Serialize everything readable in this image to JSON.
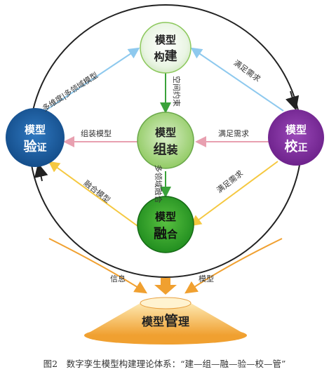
{
  "nodes": {
    "construction": {
      "line1": "模型",
      "line2": "构",
      "line2b": "建"
    },
    "assembly": {
      "line1": "模型",
      "line2": "组",
      "line2b": "装"
    },
    "fusion": {
      "line1": "模型",
      "line2": "融",
      "line2b": "合"
    },
    "verification": {
      "line1": "模型",
      "line2": "验",
      "line2b": "证"
    },
    "calibration": {
      "line1": "模型",
      "line2": "校",
      "line2b": "正"
    },
    "management": {
      "line1": "模型",
      "line2": "管",
      "line2b": "理"
    }
  },
  "edges": {
    "multi_dim": "多维度|多领域模型",
    "space_constraint": "空间约束",
    "multi_domain_fusion": "多领域融合",
    "assemble_model": "组装模型",
    "fusion_model": "融合模型",
    "need_top": "满足需求",
    "need_mid": "满足需求",
    "need_bottom": "满足需求",
    "info": "信息",
    "model": "模型"
  },
  "caption": "图2　数字孪生模型构建理论体系：“建—组—融—验—校—管”",
  "colors": {
    "green_light": "#eaf5e4",
    "green_mid": "#8cc85c",
    "green_dark": "#1d8a1d",
    "blue": "#1a5a9e",
    "purple": "#7a2a98",
    "orange": "#f0a030",
    "arrow_blue": "#8ec9ee",
    "arrow_pink": "#e8a0b0",
    "arrow_yellow": "#f5c840",
    "arrow_green": "#3aa23a"
  }
}
